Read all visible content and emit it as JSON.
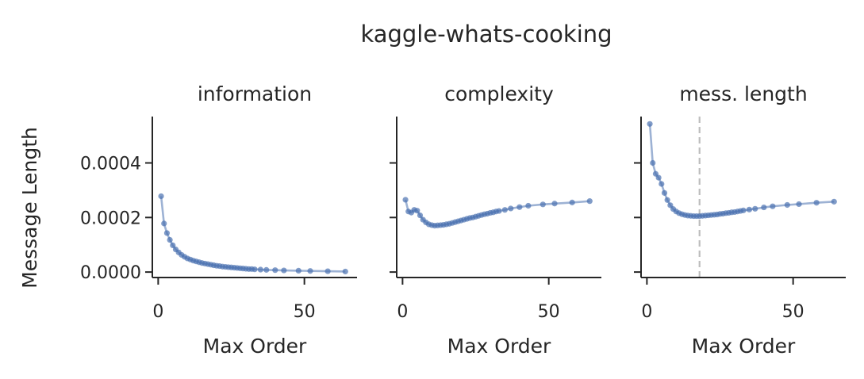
{
  "figure": {
    "suptitle": "kaggle-whats-cooking",
    "ylabel": "Message Length",
    "line_color": "#4c72b0",
    "vline_color": "#bdbdbd"
  },
  "chart_data": [
    {
      "type": "line",
      "title": "information",
      "xlabel": "Max Order",
      "ylabel": "Message Length",
      "xlim": [
        -2,
        68
      ],
      "ylim": [
        -2e-05,
        0.00057
      ],
      "xticks": [
        0,
        50
      ],
      "xtick_labels": [
        "0",
        "50"
      ],
      "yticks": [
        0,
        0.0002,
        0.0004
      ],
      "ytick_labels": [
        "0.0000",
        "0.0002",
        "0.0004"
      ],
      "x": [
        1,
        2,
        3,
        4,
        5,
        6,
        7,
        8,
        9,
        10,
        11,
        12,
        13,
        14,
        15,
        16,
        17,
        18,
        19,
        20,
        21,
        22,
        23,
        24,
        25,
        26,
        27,
        28,
        29,
        30,
        31,
        32,
        33,
        35,
        37,
        40,
        43,
        48,
        52,
        58,
        64
      ],
      "y": [
        0.000278,
        0.000178,
        0.000143,
        0.000118,
        9.8e-05,
        8.3e-05,
        7.2e-05,
        6.3e-05,
        5.6e-05,
        5e-05,
        4.6e-05,
        4.2e-05,
        3.9e-05,
        3.6e-05,
        3.3e-05,
        3.1e-05,
        2.9e-05,
        2.7e-05,
        2.5e-05,
        2.3e-05,
        2.2e-05,
        2e-05,
        1.9e-05,
        1.8e-05,
        1.7e-05,
        1.6e-05,
        1.5e-05,
        1.4e-05,
        1.3e-05,
        1.2e-05,
        1.1e-05,
        1.1e-05,
        1e-05,
        9e-06,
        8e-06,
        7e-06,
        6e-06,
        5e-06,
        4e-06,
        3e-06,
        2e-06
      ],
      "vline": null
    },
    {
      "type": "line",
      "title": "complexity",
      "xlabel": "Max Order",
      "ylabel": "",
      "xlim": [
        -2,
        68
      ],
      "ylim": [
        -2e-05,
        0.00057
      ],
      "xticks": [
        0,
        50
      ],
      "xtick_labels": [
        "0",
        "50"
      ],
      "yticks": [
        0,
        0.0002,
        0.0004
      ],
      "ytick_labels": [
        "",
        "",
        ""
      ],
      "x": [
        1,
        2,
        3,
        4,
        5,
        6,
        7,
        8,
        9,
        10,
        11,
        12,
        13,
        14,
        15,
        16,
        17,
        18,
        19,
        20,
        21,
        22,
        23,
        24,
        25,
        26,
        27,
        28,
        29,
        30,
        31,
        32,
        33,
        35,
        37,
        40,
        43,
        48,
        52,
        58,
        64
      ],
      "y": [
        0.000265,
        0.000222,
        0.000218,
        0.000228,
        0.000225,
        0.000208,
        0.000192,
        0.000182,
        0.000175,
        0.000172,
        0.00017,
        0.000171,
        0.000172,
        0.000173,
        0.000175,
        0.000177,
        0.00018,
        0.000183,
        0.000186,
        0.000189,
        0.000192,
        0.000195,
        0.000198,
        0.0002,
        0.000203,
        0.000206,
        0.000209,
        0.000212,
        0.000214,
        0.000217,
        0.000219,
        0.000222,
        0.000224,
        0.000228,
        0.000233,
        0.000238,
        0.000243,
        0.000248,
        0.000251,
        0.000255,
        0.00026
      ],
      "vline": null
    },
    {
      "type": "line",
      "title": "mess. length",
      "xlabel": "Max Order",
      "ylabel": "",
      "xlim": [
        -2,
        68
      ],
      "ylim": [
        -2e-05,
        0.00057
      ],
      "xticks": [
        0,
        50
      ],
      "xtick_labels": [
        "0",
        "50"
      ],
      "yticks": [
        0,
        0.0002,
        0.0004
      ],
      "ytick_labels": [
        "",
        "",
        ""
      ],
      "x": [
        1,
        2,
        3,
        4,
        5,
        6,
        7,
        8,
        9,
        10,
        11,
        12,
        13,
        14,
        15,
        16,
        17,
        18,
        19,
        20,
        21,
        22,
        23,
        24,
        25,
        26,
        27,
        28,
        29,
        30,
        31,
        32,
        33,
        35,
        37,
        40,
        43,
        48,
        52,
        58,
        64
      ],
      "y": [
        0.000543,
        0.0004,
        0.00036,
        0.000346,
        0.000323,
        0.00029,
        0.000264,
        0.000245,
        0.000231,
        0.000222,
        0.000216,
        0.000212,
        0.000209,
        0.000207,
        0.000206,
        0.000205,
        0.000205,
        0.000205,
        0.000206,
        0.000207,
        0.000208,
        0.000209,
        0.00021,
        0.000211,
        0.000213,
        0.000214,
        0.000216,
        0.000217,
        0.000219,
        0.00022,
        0.000222,
        0.000224,
        0.000226,
        0.000229,
        0.000232,
        0.000237,
        0.000241,
        0.000246,
        0.000249,
        0.000254,
        0.000258
      ],
      "vline": 18
    }
  ]
}
